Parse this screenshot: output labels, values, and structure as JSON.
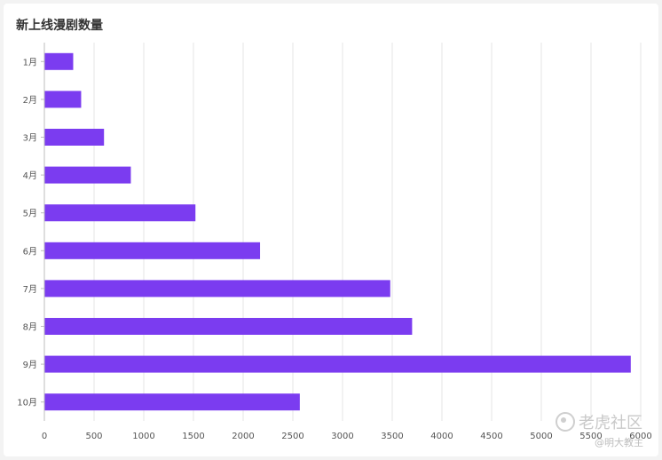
{
  "header": {
    "title": "新上线漫剧数量"
  },
  "watermark": {
    "brand": "老虎社区",
    "handle": "@明大教主"
  },
  "chart_data": {
    "type": "bar",
    "orientation": "horizontal",
    "title": "新上线漫剧数量",
    "categories": [
      "1月",
      "2月",
      "3月",
      "4月",
      "5月",
      "6月",
      "7月",
      "8月",
      "9月",
      "10月"
    ],
    "values": [
      290,
      370,
      600,
      870,
      1520,
      2170,
      3480,
      3700,
      5900,
      2570
    ],
    "xlim": [
      0,
      6000
    ],
    "xticks": [
      0,
      500,
      1000,
      1500,
      2000,
      2500,
      3000,
      3500,
      4000,
      4500,
      5000,
      5500,
      6000
    ],
    "grid": true,
    "legend": "none",
    "bar_color": "#7b3cf0"
  }
}
